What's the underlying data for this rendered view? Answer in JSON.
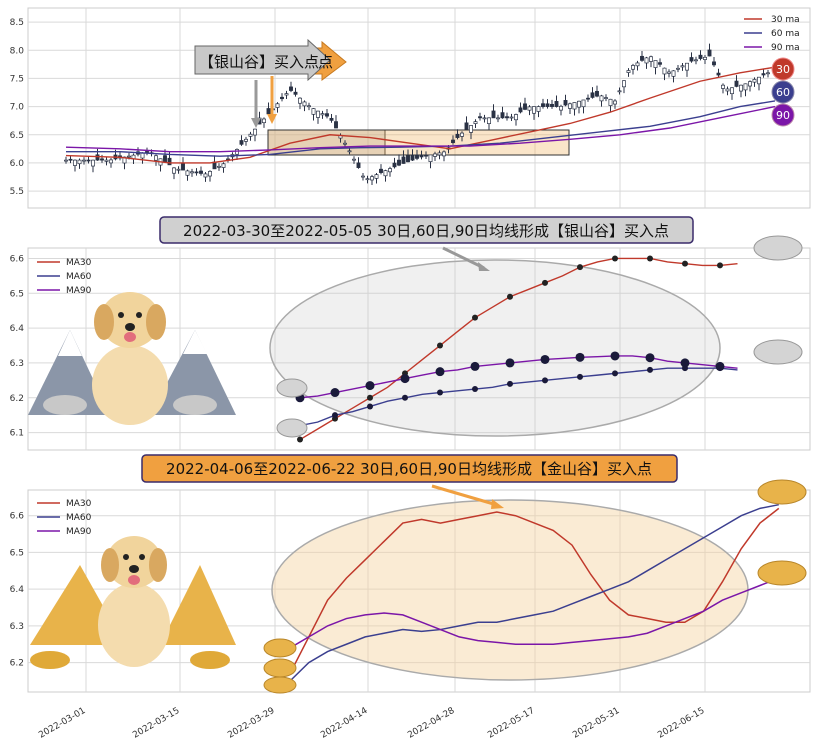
{
  "colors": {
    "ma30": "#c0392b",
    "ma60": "#3b3f8f",
    "ma90": "#7b16a8",
    "grid": "#d9d9d9",
    "silver": "#cfcfcf",
    "gold": "#f5d3a0",
    "orange": "#f0a040"
  },
  "chart_data": [
    {
      "type": "candlestick",
      "title": "",
      "ylim": [
        5.2,
        8.75
      ],
      "yticks": [
        "5.5",
        "6.0",
        "6.5",
        "7.0",
        "7.5",
        "8.0",
        "8.5"
      ],
      "legend": [
        "30 ma",
        "60 ma",
        "90 ma"
      ],
      "legend_position": "top-right",
      "ma_badges": [
        "30",
        "60",
        "90"
      ],
      "annotation": "【银山谷】买入点",
      "annotation_overlap": "点",
      "highlight_ranges": [
        [
          "2022-03-30",
          "2022-04-22"
        ],
        [
          "2022-03-30",
          "2022-05-24"
        ]
      ]
    },
    {
      "type": "line",
      "title": "2022-03-30至2022-05-05 30日,60日,90日均线形成【银山谷】买入点",
      "legend": [
        "MA30",
        "MA60",
        "MA90"
      ],
      "ylim": [
        6.05,
        6.63
      ],
      "yticks": [
        "6.1",
        "6.2",
        "6.3",
        "6.4",
        "6.5",
        "6.6"
      ],
      "x_start": "2022-03-30",
      "series": [
        {
          "name": "MA30",
          "values": [
            6.08,
            6.11,
            6.14,
            6.17,
            6.2,
            6.23,
            6.27,
            6.31,
            6.35,
            6.39,
            6.43,
            6.46,
            6.49,
            6.51,
            6.53,
            6.55,
            6.575,
            6.59,
            6.6,
            6.6,
            6.6,
            6.59,
            6.585,
            6.58,
            6.58,
            6.585
          ]
        },
        {
          "name": "MA60",
          "values": [
            6.12,
            6.13,
            6.15,
            6.16,
            6.175,
            6.19,
            6.2,
            6.21,
            6.215,
            6.22,
            6.225,
            6.23,
            6.24,
            6.245,
            6.25,
            6.255,
            6.26,
            6.265,
            6.27,
            6.275,
            6.28,
            6.285,
            6.285,
            6.285,
            6.285,
            6.28
          ]
        },
        {
          "name": "MA90",
          "values": [
            6.2,
            6.205,
            6.215,
            6.225,
            6.235,
            6.245,
            6.255,
            6.265,
            6.275,
            6.28,
            6.29,
            6.295,
            6.3,
            6.305,
            6.31,
            6.313,
            6.316,
            6.318,
            6.32,
            6.32,
            6.315,
            6.305,
            6.3,
            6.295,
            6.29,
            6.285
          ]
        }
      ]
    },
    {
      "type": "line",
      "title": "2022-04-06至2022-06-22 30日,60日,90日均线形成【金山谷】买入点",
      "legend": [
        "MA30",
        "MA60",
        "MA90"
      ],
      "ylim": [
        6.12,
        6.67
      ],
      "yticks": [
        "6.2",
        "6.3",
        "6.4",
        "6.5",
        "6.6"
      ],
      "xticks": [
        "2022-03-01",
        "2022-03-15",
        "2022-03-29",
        "2022-04-14",
        "2022-04-28",
        "2022-05-17",
        "2022-05-31",
        "2022-06-15"
      ],
      "series": [
        {
          "name": "MA30",
          "values": [
            6.17,
            6.27,
            6.37,
            6.43,
            6.48,
            6.53,
            6.58,
            6.59,
            6.58,
            6.59,
            6.6,
            6.61,
            6.6,
            6.58,
            6.56,
            6.52,
            6.44,
            6.37,
            6.33,
            6.32,
            6.31,
            6.31,
            6.34,
            6.42,
            6.51,
            6.58,
            6.62
          ]
        },
        {
          "name": "MA60",
          "values": [
            6.15,
            6.2,
            6.23,
            6.25,
            6.27,
            6.28,
            6.29,
            6.285,
            6.29,
            6.3,
            6.31,
            6.31,
            6.32,
            6.33,
            6.34,
            6.36,
            6.38,
            6.4,
            6.42,
            6.45,
            6.48,
            6.51,
            6.54,
            6.57,
            6.6,
            6.62,
            6.63
          ]
        },
        {
          "name": "MA90",
          "values": [
            6.24,
            6.27,
            6.3,
            6.32,
            6.33,
            6.335,
            6.33,
            6.31,
            6.29,
            6.27,
            6.26,
            6.255,
            6.25,
            6.25,
            6.25,
            6.255,
            6.26,
            6.265,
            6.27,
            6.28,
            6.3,
            6.32,
            6.34,
            6.37,
            6.39,
            6.41,
            6.43
          ]
        }
      ]
    }
  ]
}
